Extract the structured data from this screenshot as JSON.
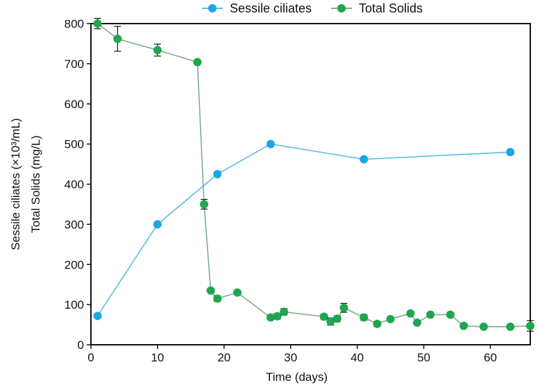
{
  "chart_data": {
    "type": "line",
    "title": "",
    "xlabel": "Time (days)",
    "ylabel_lines": [
      "Sessile ciliates (×10³/mL)",
      "Total Solids (mg/L)"
    ],
    "xlim": [
      0,
      66
    ],
    "ylim": [
      0,
      800
    ],
    "xticks": [
      0,
      10,
      20,
      30,
      40,
      50,
      60
    ],
    "yticks": [
      0,
      100,
      200,
      300,
      400,
      500,
      600,
      700,
      800
    ],
    "grid": false,
    "legend_position": "top-center",
    "series": [
      {
        "name": "Sessile ciliates",
        "color": "#1aa7e8",
        "line_color": "#5bbbe3",
        "x": [
          1,
          10,
          19,
          27,
          41,
          63
        ],
        "values": [
          72,
          300,
          425,
          500,
          462,
          480
        ],
        "errors": [
          0,
          0,
          0,
          0,
          0,
          0
        ]
      },
      {
        "name": "Total Solids",
        "color": "#1fa64f",
        "line_color": "#7fae8c",
        "x": [
          1,
          4,
          10,
          16,
          17,
          18,
          19,
          22,
          27,
          28,
          29,
          35,
          36,
          37,
          38,
          41,
          43,
          45,
          48,
          49,
          51,
          54,
          56,
          59,
          63,
          66
        ],
        "values": [
          800,
          762,
          734,
          704,
          350,
          135,
          115,
          130,
          68,
          71,
          82,
          70,
          58,
          65,
          92,
          68,
          52,
          64,
          78,
          55,
          75,
          75,
          47,
          45,
          45,
          47
        ],
        "errors": [
          13,
          31,
          15,
          5,
          12,
          4,
          7,
          3,
          4,
          7,
          8,
          6,
          9,
          7,
          11,
          7,
          6,
          3,
          4,
          3,
          3,
          3,
          3,
          3,
          3,
          13
        ]
      }
    ]
  }
}
